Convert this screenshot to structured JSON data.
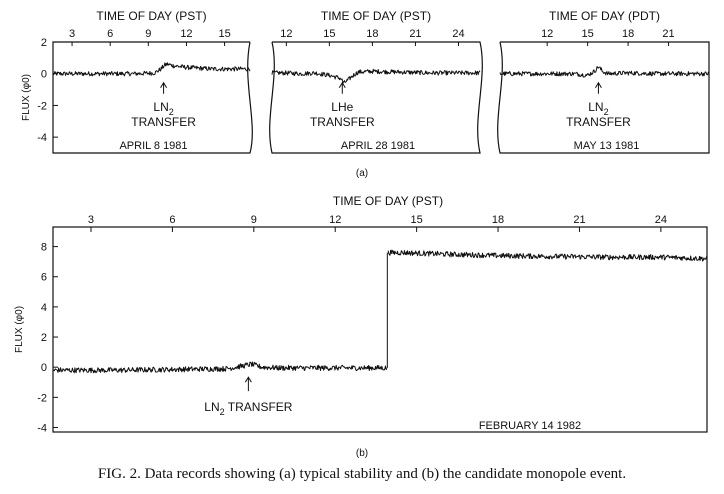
{
  "caption": "FIG. 2. Data records showing (a) typical stability and (b) the candidate monopole event.",
  "chart_data": [
    {
      "type": "line",
      "panel": "a",
      "xlabel": "",
      "ylabel": "FLUX (φ0)",
      "ylim": [
        -5,
        2
      ],
      "yticks": [
        "2",
        "0",
        "-2",
        "-4"
      ],
      "subplots": [
        {
          "date": "APRIL 8 1981",
          "top_axis_label": "TIME OF DAY (PST)",
          "xticks": [
            "3",
            "6",
            "9",
            "12",
            "15"
          ],
          "xlim": [
            1.5,
            17.0
          ],
          "annotation": [
            "LN2",
            "TRANSFER"
          ],
          "annotation_x": 10.2,
          "series": [
            {
              "x": [
                1.5,
                4,
                6,
                8,
                9.5,
                10.0,
                10.3,
                10.5,
                11,
                12,
                13,
                14,
                15,
                16,
                17.0
              ],
              "y": [
                0.0,
                0.0,
                0.0,
                0.0,
                0.05,
                0.3,
                0.55,
                0.6,
                0.5,
                0.4,
                0.35,
                0.3,
                0.3,
                0.3,
                0.3
              ]
            }
          ]
        },
        {
          "date": "APRIL 28 1981",
          "top_axis_label": "TIME OF DAY (PST)",
          "xticks": [
            "12",
            "15",
            "18",
            "21",
            "24"
          ],
          "xlim": [
            11.0,
            25.5
          ],
          "annotation": [
            "LHe",
            "TRANSFER"
          ],
          "annotation_x": 15.9,
          "series": [
            {
              "x": [
                11.0,
                12,
                13,
                14,
                15,
                15.8,
                16.0,
                16.3,
                16.6,
                17.0,
                18,
                20,
                22,
                24,
                25.5
              ],
              "y": [
                0.05,
                0.05,
                0.0,
                0.05,
                -0.1,
                -0.3,
                -0.6,
                -0.4,
                -0.15,
                0.1,
                0.15,
                0.1,
                0.05,
                0.05,
                0.05
              ]
            }
          ]
        },
        {
          "date": "MAY 13 1981",
          "top_axis_label": "TIME OF DAY (PDT)",
          "xticks": [
            "12",
            "15",
            "18",
            "21"
          ],
          "xlim": [
            8.5,
            24.0
          ],
          "annotation": [
            "LN2",
            "TRANSFER"
          ],
          "annotation_x": 15.8,
          "series": [
            {
              "x": [
                8.5,
                10,
                12,
                14,
                15.0,
                15.5,
                15.8,
                16.1,
                16.5,
                18,
                20,
                22,
                24.0
              ],
              "y": [
                0.0,
                0.0,
                0.0,
                0.0,
                -0.1,
                0.15,
                0.45,
                0.15,
                0.0,
                0.05,
                0.0,
                0.0,
                0.0
              ]
            }
          ]
        }
      ]
    },
    {
      "type": "line",
      "panel": "b",
      "top_axis_label": "TIME OF DAY (PST)",
      "xlabel": "",
      "ylabel": "FLUX (φ0)",
      "xticks": [
        "3",
        "6",
        "9",
        "12",
        "15",
        "18",
        "21",
        "24"
      ],
      "xlim": [
        1.6,
        25.7
      ],
      "ylim": [
        -4.3,
        9.3
      ],
      "yticks": [
        "8",
        "6",
        "4",
        "2",
        "0",
        "-2",
        "-4"
      ],
      "date": "FEBRUARY 14 1982",
      "annotation": "LN2 TRANSFER",
      "annotation_x": 8.8,
      "series": [
        {
          "x": [
            1.6,
            4,
            6,
            8,
            8.5,
            8.9,
            9.3,
            10,
            12,
            13.9,
            13.95,
            14.5,
            16,
            18,
            20,
            22,
            24,
            25.7
          ],
          "y": [
            -0.2,
            -0.2,
            -0.15,
            -0.1,
            0.05,
            0.2,
            0.0,
            -0.05,
            -0.05,
            -0.05,
            7.6,
            7.6,
            7.5,
            7.4,
            7.35,
            7.3,
            7.3,
            7.2
          ]
        }
      ]
    }
  ]
}
